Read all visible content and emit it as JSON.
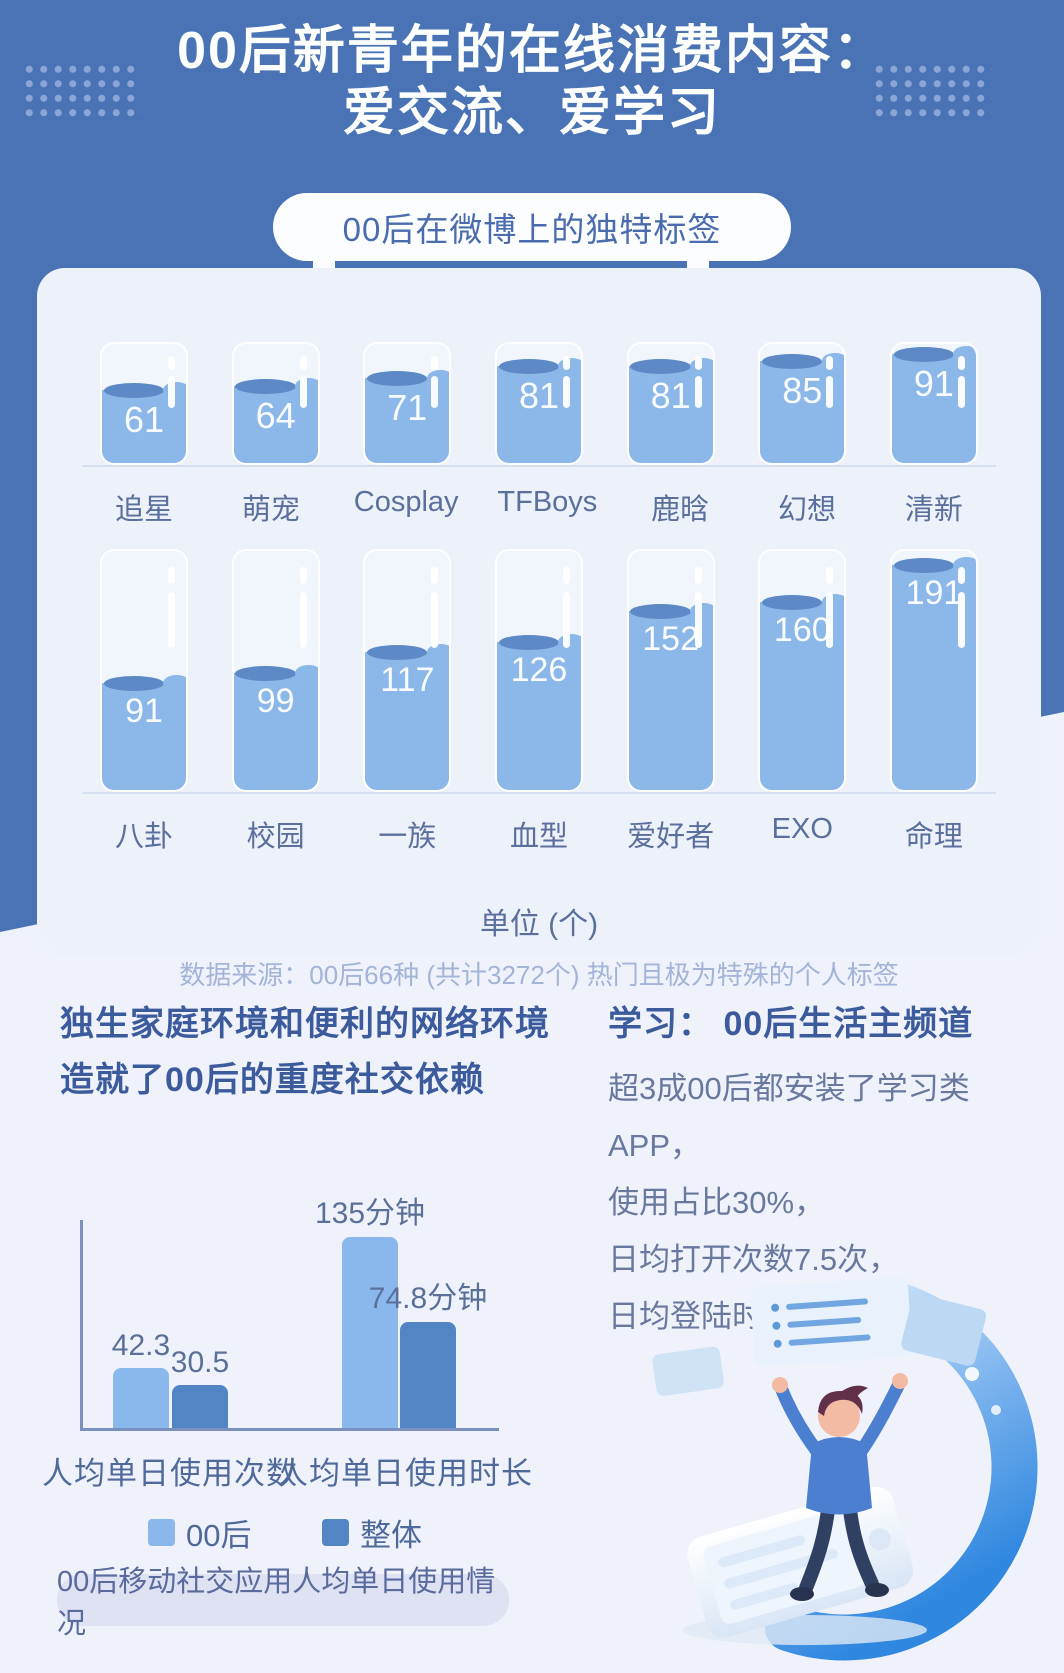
{
  "header": {
    "title_line1": "00后新青年的在线消费内容：",
    "title_line2": "爱交流、爱学习",
    "tag_pill": "00后在微博上的独特标签"
  },
  "colors": {
    "hero_blue": "#4a73b5",
    "card_bg": "#edf1fa",
    "water": "#8cb7e9",
    "wave": "#5d89c6",
    "bar_light": "#8ab8ec",
    "bar_dark": "#5385c5",
    "heading_text": "#3c5b9d",
    "caption_pill_bg": "#dee2f2"
  },
  "chart_data": [
    {
      "type": "bar",
      "variant": "water-cup-bars",
      "title": "00后在微博上的独特标签",
      "unit_label": "单位 (个)",
      "source": "数据来源：00后66种 (共计3272个) 热门且极为特殊的个人标签",
      "rows": [
        {
          "categories": [
            "追星",
            "萌宠",
            "Cosplay",
            "TFBoys",
            "鹿晗",
            "幻想",
            "清新"
          ],
          "values": [
            61,
            64,
            71,
            81,
            81,
            85,
            91
          ],
          "scale_max": 99
        },
        {
          "categories": [
            "八卦",
            "校园",
            "一族",
            "血型",
            "爱好者",
            "EXO",
            "命理"
          ],
          "values": [
            91,
            99,
            117,
            126,
            152,
            160,
            191
          ],
          "scale_max": 203
        }
      ]
    },
    {
      "type": "bar",
      "variant": "grouped-bars",
      "title": "00后移动社交应用人均单日使用情况",
      "categories": [
        "人均单日使用次数",
        "人均单日使用时长"
      ],
      "series": [
        {
          "name": "00后",
          "color": "#8ab8ec",
          "values": [
            42.3,
            135
          ],
          "labels": [
            "42.3",
            "135分钟"
          ]
        },
        {
          "name": "整体",
          "color": "#5385c5",
          "values": [
            30.5,
            74.8
          ],
          "labels": [
            "30.5",
            "74.8分钟"
          ]
        }
      ],
      "legend": [
        "00后",
        "整体"
      ],
      "legend_position": "bottom"
    }
  ],
  "sections": {
    "social": {
      "heading_line1": "独生家庭环境和便利的网络环境",
      "heading_line2": "造就了00后的重度社交依赖",
      "caption": "00后移动社交应用人均单日使用情况"
    },
    "study": {
      "heading": "学习： 00后生活主频道",
      "lines": [
        "超3成00后都安装了学习类APP，",
        "使用占比30%，",
        "日均打开次数7.5次，",
        "日均登陆时长15分钟"
      ]
    }
  }
}
